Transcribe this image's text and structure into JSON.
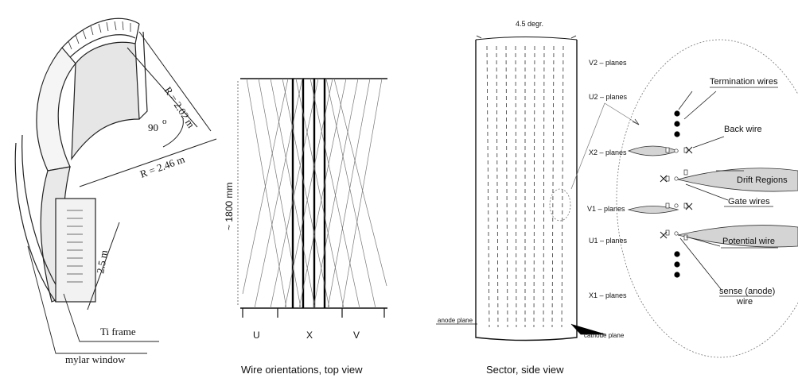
{
  "left_panel": {
    "r_inner": "R = 2.02 m",
    "r_outer": "R = 2.46 m",
    "angle": "90",
    "angle_unit": "o",
    "length": "2.5 m",
    "ti_frame": "Ti  frame",
    "mylar": "mylar window"
  },
  "middle_panel": {
    "height": "~ 1800 mm",
    "u": "U",
    "x": "X",
    "v": "V",
    "caption": "Wire orientations, top view"
  },
  "right_panel": {
    "angle": "4.5  degr.",
    "planes": [
      "V2 – planes",
      "U2 – planes",
      "X2 – planes",
      "V1 – planes",
      "U1 – planes",
      "X1 – planes"
    ],
    "anode_plane": "anode plane",
    "cathode_plane": "cathode plane",
    "caption": "Sector, side view"
  },
  "detail": {
    "termination": "Termination wires",
    "back_wire": "Back wire",
    "drift": "Drift Regions",
    "gate": "Gate wires",
    "potential": "Potential wire",
    "sense1": "sense (anode)",
    "sense2": "wire"
  }
}
